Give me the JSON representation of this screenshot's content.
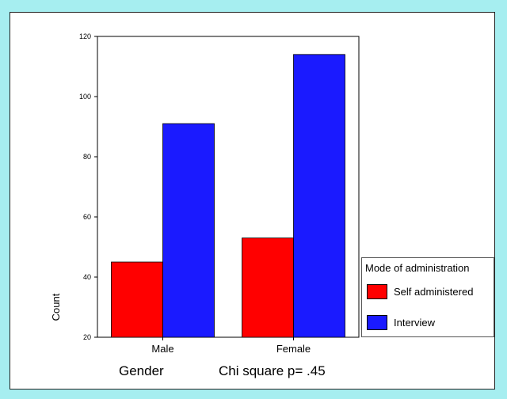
{
  "chart_data": {
    "type": "bar",
    "categories": [
      "Male",
      "Female"
    ],
    "series": [
      {
        "name": "Self administered",
        "values": [
          45,
          53
        ],
        "color": "#ff0000"
      },
      {
        "name": "Interview",
        "values": [
          91,
          114
        ],
        "color": "#1a1aff"
      }
    ],
    "title": "",
    "xlabel": "Gender",
    "annotation": "Chi square p= .45",
    "ylabel": "Count",
    "ylim": [
      20,
      120
    ],
    "yticks": [
      20,
      40,
      60,
      80,
      100,
      120
    ],
    "grid": false,
    "legend": {
      "title": "Mode of administration",
      "placement": "right"
    }
  }
}
